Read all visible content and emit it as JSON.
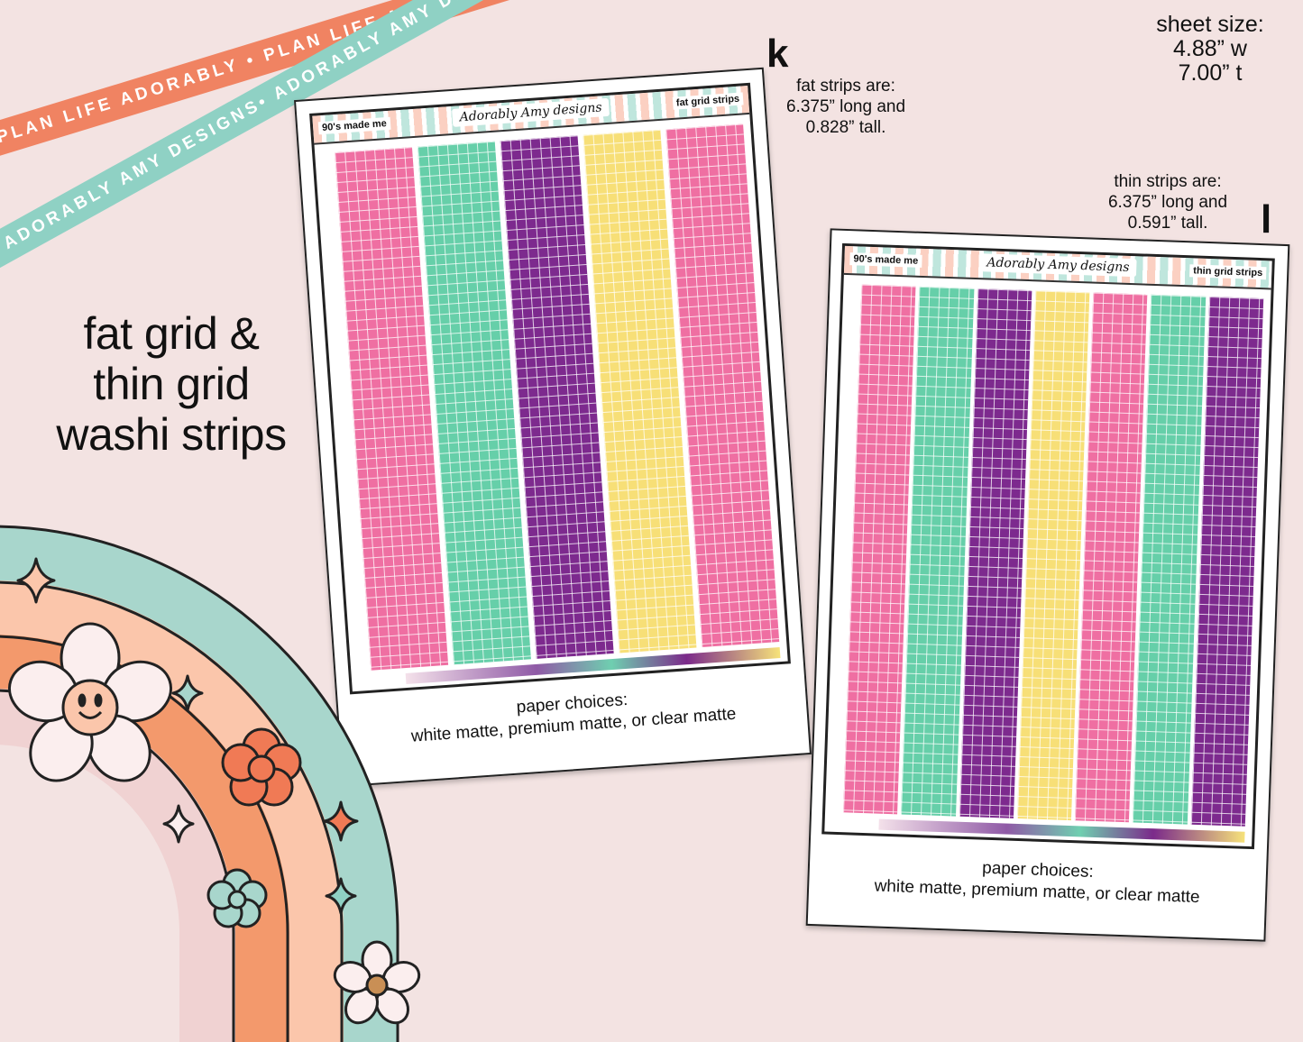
{
  "ribbons": {
    "coral_text": "PLAN LIFE ADORABLY • PLAN LIFE ADORABLY • PLAN LIFE ADORABLY •",
    "teal_text": "ADORABLY AMY DESIGNS• ADORABLY AMY DESIGNS• ADORABLY AMY DESIGNS•"
  },
  "headline": [
    "fat grid &",
    "thin grid",
    "washi strips"
  ],
  "sheet_size": [
    "sheet size:",
    "4.88” w",
    "7.00” t"
  ],
  "fat_note": [
    "fat strips are:",
    "6.375” long and",
    "0.828” tall."
  ],
  "thin_note": [
    "thin strips are:",
    "6.375” long and",
    "0.591” tall."
  ],
  "letters": {
    "k": "k",
    "l": "l"
  },
  "sheet_fat": {
    "title_left": "90's made me",
    "title_right": "fat grid strips",
    "brand": "Adorably Amy designs",
    "strip_colors": [
      "#ef6fa2",
      "#66cfa9",
      "#7d2a8e",
      "#f7df77",
      "#ef6fa2"
    ]
  },
  "sheet_thin": {
    "title_left": "90's made me",
    "title_right": "thin grid strips",
    "brand": "Adorably Amy designs",
    "strip_colors": [
      "#ef6fa2",
      "#66cfa9",
      "#7d2a8e",
      "#f7df77",
      "#ef6fa2",
      "#66cfa9",
      "#7d2a8e"
    ]
  },
  "paper_choices": {
    "line1": "paper choices:",
    "line2": "white matte, premium matte, or clear matte"
  },
  "colors": {
    "background": "#f3e3e2",
    "coral": "#f08362",
    "teal": "#8fd1c4",
    "peach": "#fbcab1",
    "orange": "#f2976c",
    "pink_band": "#f0d3d3"
  }
}
